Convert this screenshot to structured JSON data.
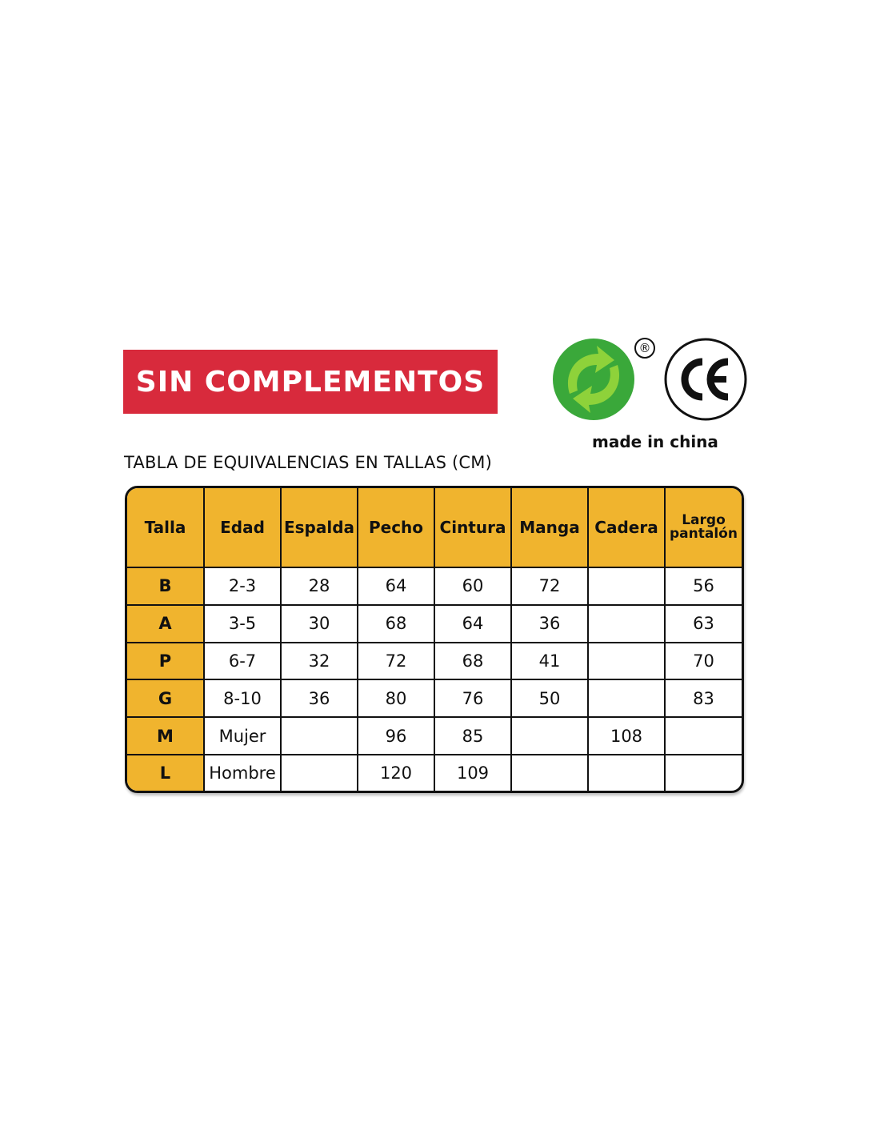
{
  "banner": {
    "label": "SIN COMPLEMENTOS",
    "color": "#d82a3c"
  },
  "logos": {
    "green_dot": "green-dot-recycling-logo",
    "registered": "®",
    "ce": "CE",
    "made_in": "made in china"
  },
  "table_title": "TABLA DE EQUIVALENCIAS EN TALLAS (CM)",
  "table": {
    "accent": "#f0b42e",
    "headers": [
      "Talla",
      "Edad",
      "Espalda",
      "Pecho",
      "Cintura",
      "Manga",
      "Cadera",
      "Largo pantalón"
    ],
    "rows": [
      [
        "B",
        "2-3",
        "28",
        "64",
        "60",
        "72",
        "",
        "56"
      ],
      [
        "A",
        "3-5",
        "30",
        "68",
        "64",
        "36",
        "",
        "63"
      ],
      [
        "P",
        "6-7",
        "32",
        "72",
        "68",
        "41",
        "",
        "70"
      ],
      [
        "G",
        "8-10",
        "36",
        "80",
        "76",
        "50",
        "",
        "83"
      ],
      [
        "M",
        "Mujer",
        "",
        "96",
        "85",
        "",
        "108",
        ""
      ],
      [
        "L",
        "Hombre",
        "",
        "120",
        "109",
        "",
        "",
        ""
      ]
    ]
  }
}
